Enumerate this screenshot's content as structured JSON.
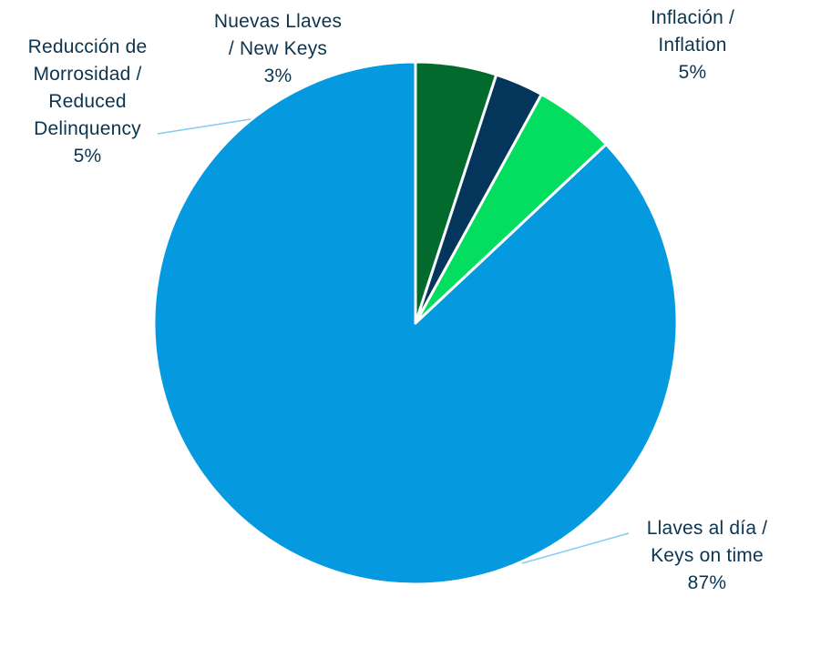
{
  "chart_data": {
    "type": "pie",
    "title": "",
    "legend": "none",
    "series": [
      {
        "name": "Llaves al día / Keys on time",
        "label_lines": [
          "Llaves al día /",
          "Keys on time"
        ],
        "value": 87,
        "value_label": "87%",
        "color": "#0599e0"
      },
      {
        "name": "Reducción de Morrosidad / Reduced Delinquency",
        "label_lines": [
          "Reducción de",
          "Morrosidad /",
          "Reduced",
          "Delinquency"
        ],
        "value": 5,
        "value_label": "5%",
        "color": "#04de60"
      },
      {
        "name": "Nuevas Llaves / New Keys",
        "label_lines": [
          "Nuevas Llaves",
          "/ New Keys"
        ],
        "value": 3,
        "value_label": "3%",
        "color": "#03365a"
      },
      {
        "name": "Inflación / Inflation",
        "label_lines": [
          "Inflación /",
          "Inflation"
        ],
        "value": 5,
        "value_label": "5%",
        "color": "#036a2e"
      }
    ],
    "leader_line_color": "#7fcdf0"
  }
}
